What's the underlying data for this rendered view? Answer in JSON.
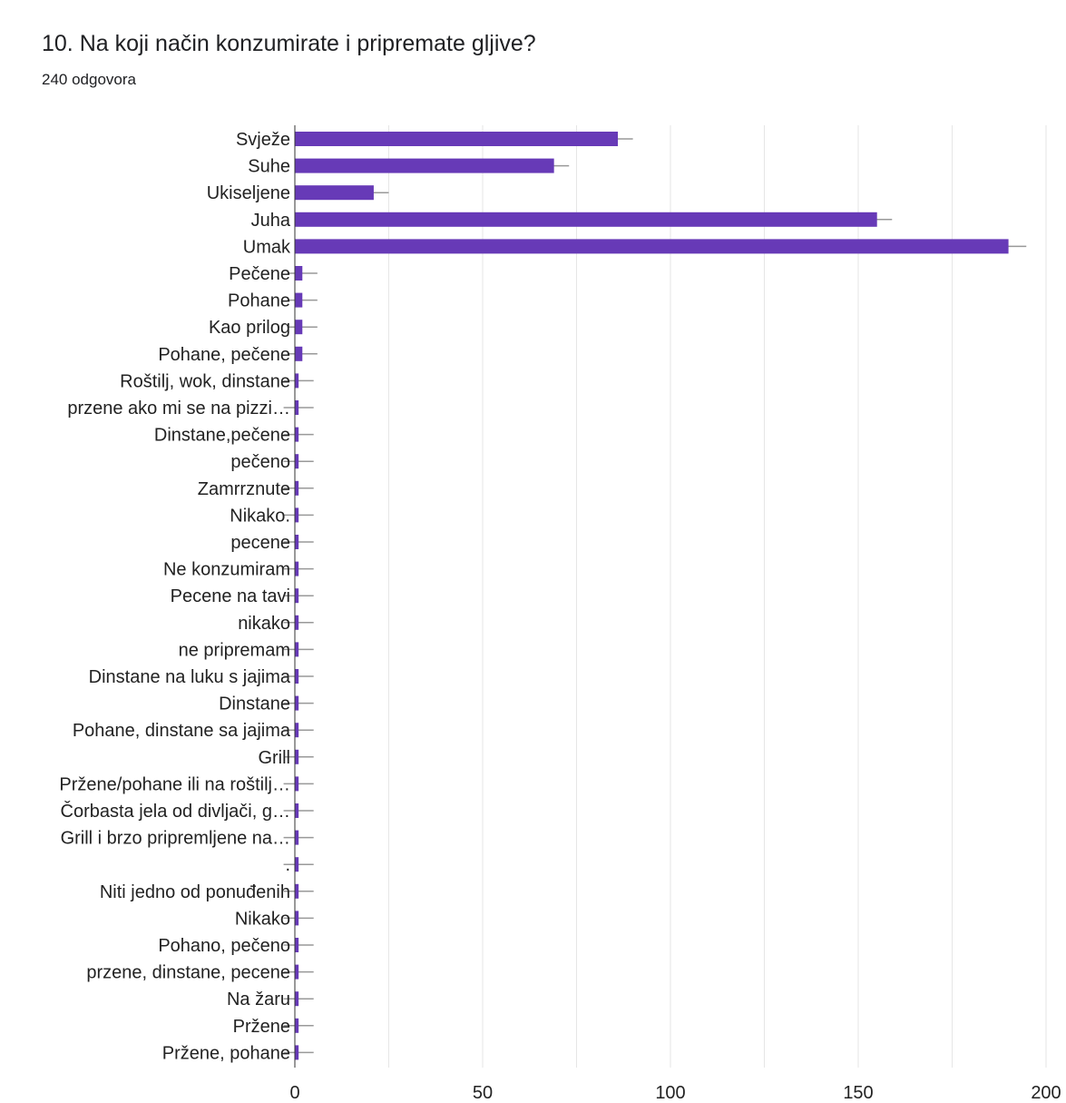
{
  "header": {
    "title": "10. Na koji način konzumirate i pripremate gljive?",
    "subtitle": "240 odgovora"
  },
  "colors": {
    "bar": "#673ab7",
    "error": "#999999",
    "grid": "#e6e6e6",
    "axis": "#333333"
  },
  "chart_data": {
    "type": "bar",
    "orientation": "horizontal",
    "title": "10. Na koji način konzumirate i pripremate gljive?",
    "subtitle": "240 odgovora",
    "xlabel": "",
    "ylabel": "",
    "xlim": [
      0,
      200
    ],
    "x_ticks": [
      0,
      50,
      100,
      150,
      200
    ],
    "grid": true,
    "error_bars": true,
    "categories": [
      "Svježe",
      "Suhe",
      "Ukiseljene",
      "Juha",
      "Umak",
      "Pečene",
      "Pohane",
      "Kao prilog",
      "Pohane, pečene",
      "Roštilj, wok, dinstane",
      "przene ako mi se na pizzi…",
      "Dinstane,pečene",
      "pečeno",
      "Zamrrznute",
      "Nikako.",
      "pecene",
      "Ne konzumiram",
      "Pecene na tavi",
      "nikako",
      "ne pripremam",
      "Dinstane na luku s jajima",
      "Dinstane",
      "Pohane, dinstane sa jajima",
      "Grill",
      "Pržene/pohane ili na roštilj…",
      "Čorbasta jela od divljači, g…",
      "Grill i brzo pripremljene na…",
      ".",
      "Niti jedno od ponuđenih",
      "Nikako",
      "Pohano, pečeno",
      "przene, dinstane, pecene",
      "Na žaru",
      "Pržene",
      "Pržene, pohane"
    ],
    "values": [
      86,
      69,
      21,
      155,
      190,
      2,
      2,
      2,
      2,
      1,
      1,
      1,
      1,
      1,
      1,
      1,
      1,
      1,
      1,
      1,
      1,
      1,
      1,
      1,
      1,
      1,
      1,
      1,
      1,
      1,
      1,
      1,
      1,
      1,
      1
    ]
  }
}
